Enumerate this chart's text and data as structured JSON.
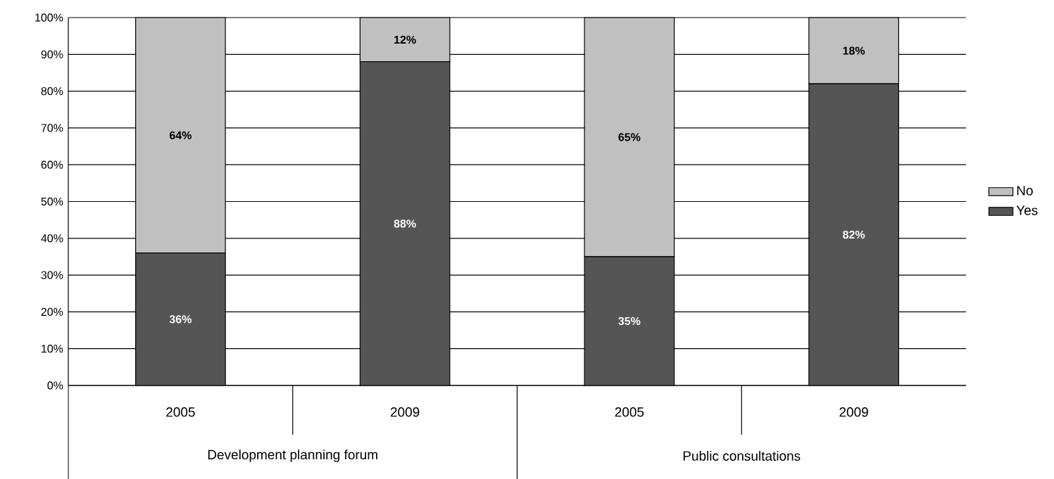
{
  "chart_data": {
    "type": "bar",
    "stacked": true,
    "categories": [
      "2005",
      "2009",
      "2005",
      "2009"
    ],
    "series": [
      {
        "name": "Yes",
        "color": "#555555",
        "values": [
          36,
          88,
          35,
          82
        ],
        "value_labels": [
          "36%",
          "88%",
          "35%",
          "82%"
        ]
      },
      {
        "name": "No",
        "color": "#c0c0c0",
        "values": [
          64,
          12,
          65,
          18
        ],
        "value_labels": [
          "64%",
          "12%",
          "65%",
          "18%"
        ]
      }
    ],
    "annotations": [
      "Development planning forum",
      "Public consultations"
    ],
    "ylim": [
      0,
      100
    ],
    "yticks": [
      {
        "value": 0,
        "label": "0%"
      },
      {
        "value": 10,
        "label": "10%"
      },
      {
        "value": 20,
        "label": "20%"
      },
      {
        "value": 30,
        "label": "30%"
      },
      {
        "value": 40,
        "label": "40%"
      },
      {
        "value": 50,
        "label": "50%"
      },
      {
        "value": 60,
        "label": "60%"
      },
      {
        "value": 70,
        "label": "70%"
      },
      {
        "value": 80,
        "label": "80%"
      },
      {
        "value": 90,
        "label": "90%"
      },
      {
        "value": 100,
        "label": "100%"
      }
    ],
    "grid": "y",
    "legend": "right"
  }
}
